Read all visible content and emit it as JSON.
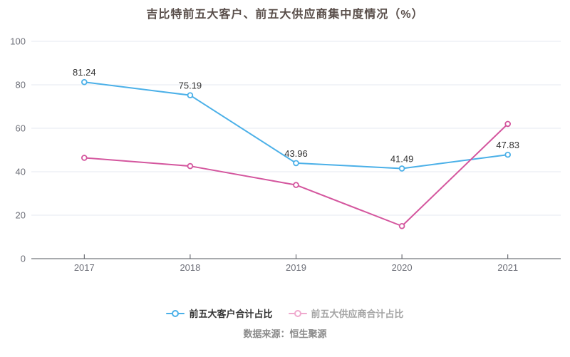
{
  "chart_data": {
    "type": "line",
    "title": "吉比特前五大客户、前五大供应商集中度情况（%）",
    "categories": [
      "2017",
      "2018",
      "2019",
      "2020",
      "2021"
    ],
    "series": [
      {
        "name": "前五大客户合计占比",
        "color": "#4bb0e8",
        "values": [
          81.24,
          75.19,
          43.96,
          41.49,
          47.83
        ],
        "labels": [
          "81.24",
          "75.19",
          "43.96",
          "41.49",
          "47.83"
        ]
      },
      {
        "name": "前五大供应商合计占比",
        "color": "#d4569e",
        "values": [
          46.4,
          42.6,
          33.9,
          15.0,
          62.0
        ],
        "labels": []
      }
    ],
    "ylim": [
      0,
      100
    ],
    "yticks": [
      0,
      20,
      40,
      60,
      80,
      100
    ],
    "grid": true,
    "legend_position": "bottom",
    "marker": "hollow-circle"
  },
  "colors": {
    "grid_line": "#e4e9f2",
    "axis_line": "#51545b",
    "axis_label": "#6e7079",
    "data_label": "#333333",
    "title": "#5a4f4b"
  },
  "legend": {
    "items": [
      {
        "label": "前五大客户合计占比",
        "marker_color": "#4bb0e8",
        "text_color": "#333333"
      },
      {
        "label": "前五大供应商合计占比",
        "marker_color": "#efa9ce",
        "text_color": "#a4a4a4"
      }
    ]
  },
  "footer": {
    "source_label": "数据来源：恒生聚源"
  }
}
